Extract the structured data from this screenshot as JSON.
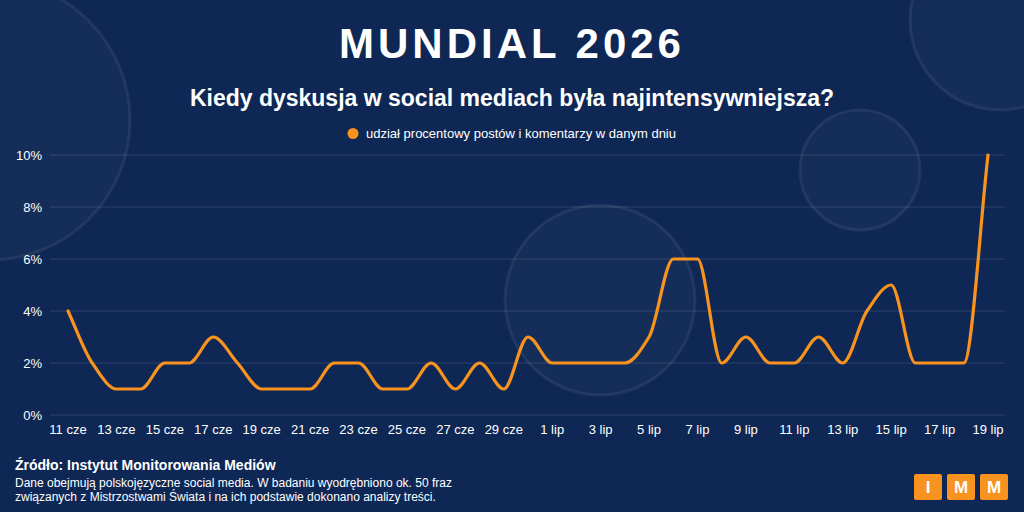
{
  "chart_data": {
    "type": "line",
    "title": "MUNDIAL 2026",
    "subtitle": "Kiedy dyskusja w social mediach była najintensywniejsza?",
    "categories": [
      "11 cze",
      null,
      "13 cze",
      null,
      "15 cze",
      null,
      "17 cze",
      null,
      "19 cze",
      null,
      "21 cze",
      null,
      "23 cze",
      null,
      "25 cze",
      null,
      "27 cze",
      null,
      "29 cze",
      null,
      "1 lip",
      null,
      "3 lip",
      null,
      "5 lip",
      null,
      "7 lip",
      null,
      "9 lip",
      null,
      "11 lip",
      null,
      "13 lip",
      null,
      "15 lip",
      null,
      "17 lip",
      null,
      "19 lip"
    ],
    "series": [
      {
        "name": "udział procentowy postów i komentarzy w danym dniu",
        "color": "#f7931e",
        "values": [
          4,
          2,
          1,
          1,
          2,
          2,
          3,
          2,
          1,
          1,
          1,
          2,
          2,
          1,
          1,
          2,
          1,
          2,
          1,
          3,
          2,
          2,
          2,
          2,
          3,
          6,
          6,
          2,
          3,
          2,
          2,
          3,
          2,
          4,
          5,
          2,
          2,
          2,
          10
        ]
      }
    ],
    "ylim": [
      0,
      10
    ],
    "yticks": [
      {
        "value": 0,
        "label": "0%"
      },
      {
        "value": 2,
        "label": "2%"
      },
      {
        "value": 4,
        "label": "4%"
      },
      {
        "value": 6,
        "label": "6%"
      },
      {
        "value": 8,
        "label": "8%"
      },
      {
        "value": 10,
        "label": "10%"
      }
    ],
    "grid": true,
    "legend": "top",
    "source": "Źródło: Instytut Monitorowania Mediów",
    "note": [
      "Dane obejmują polskojęzyczne social media. W badaniu wyodrębniono ok. 50 fraz",
      "związanych z Mistrzostwami Świata i na ich podstawie dokonano analizy treści."
    ],
    "logo": [
      "I",
      "M",
      "M"
    ]
  }
}
